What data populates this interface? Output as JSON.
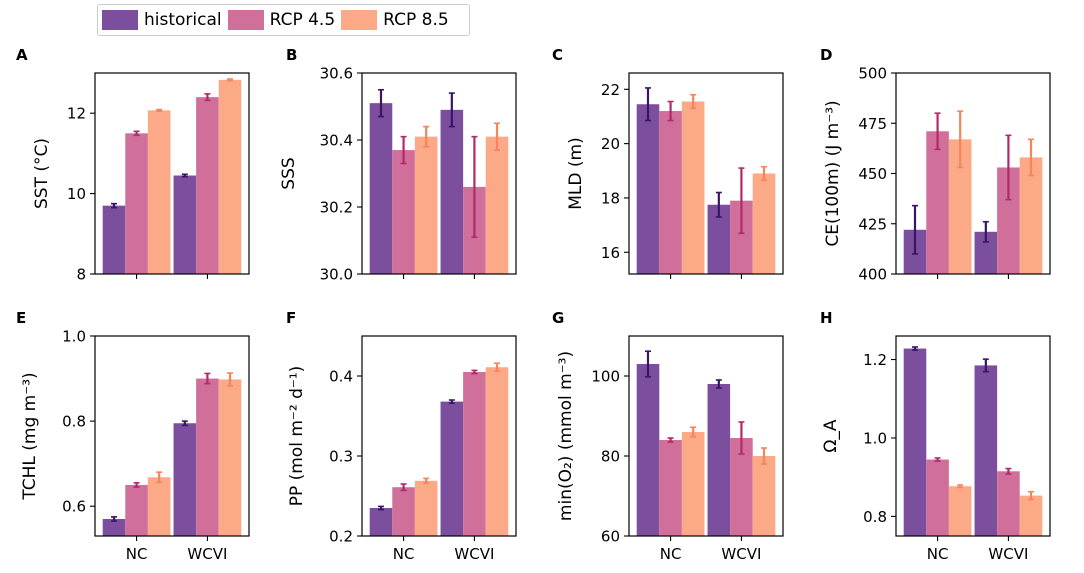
{
  "legend": [
    {
      "name": "historical",
      "color": "#7b4f9e"
    },
    {
      "name": "RCP 4.5",
      "color": "#d0709a"
    },
    {
      "name": "RCP 8.5",
      "color": "#fca987"
    }
  ],
  "chart_data": [
    {
      "type": "bar",
      "label": "A",
      "ylabel": "SST (°C)",
      "categories": [
        "NC",
        "WCVI"
      ],
      "ylim": [
        8,
        13
      ],
      "yticks": [
        "8",
        "10",
        "12"
      ],
      "ytick_values": [
        8,
        10,
        12
      ],
      "series": [
        {
          "name": "historical",
          "values": [
            9.7,
            10.45
          ],
          "err": [
            0.05,
            0.03
          ]
        },
        {
          "name": "RCP 4.5",
          "values": [
            11.5,
            12.4
          ],
          "err": [
            0.05,
            0.08
          ]
        },
        {
          "name": "RCP 8.5",
          "values": [
            12.07,
            12.83
          ],
          "err": [
            0.02,
            0.02
          ]
        }
      ]
    },
    {
      "type": "bar",
      "label": "B",
      "ylabel": "SSS",
      "categories": [
        "NC",
        "WCVI"
      ],
      "ylim": [
        30.0,
        30.6
      ],
      "yticks": [
        "30.0",
        "30.2",
        "30.4",
        "30.6"
      ],
      "ytick_values": [
        30.0,
        30.2,
        30.4,
        30.6
      ],
      "series": [
        {
          "name": "historical",
          "values": [
            30.51,
            30.49
          ],
          "err": [
            0.04,
            0.05
          ]
        },
        {
          "name": "RCP 4.5",
          "values": [
            30.37,
            30.26
          ],
          "err": [
            0.04,
            0.15
          ]
        },
        {
          "name": "RCP 8.5",
          "values": [
            30.41,
            30.41
          ],
          "err": [
            0.03,
            0.04
          ]
        }
      ]
    },
    {
      "type": "bar",
      "label": "C",
      "ylabel": "MLD (m)",
      "categories": [
        "NC",
        "WCVI"
      ],
      "ylim": [
        15.2,
        22.6
      ],
      "yticks": [
        "16",
        "18",
        "20",
        "22"
      ],
      "ytick_values": [
        16,
        18,
        20,
        22
      ],
      "series": [
        {
          "name": "historical",
          "values": [
            21.45,
            17.75
          ],
          "err": [
            0.6,
            0.45
          ]
        },
        {
          "name": "RCP 4.5",
          "values": [
            21.2,
            17.9
          ],
          "err": [
            0.35,
            1.2
          ]
        },
        {
          "name": "RCP 8.5",
          "values": [
            21.55,
            18.9
          ],
          "err": [
            0.25,
            0.25
          ]
        }
      ]
    },
    {
      "type": "bar",
      "label": "D",
      "ylabel": "CE(100m) (J m⁻³)",
      "categories": [
        "NC",
        "WCVI"
      ],
      "ylim": [
        400,
        500
      ],
      "yticks": [
        "400",
        "425",
        "450",
        "475",
        "500"
      ],
      "ytick_values": [
        400,
        425,
        450,
        475,
        500
      ],
      "series": [
        {
          "name": "historical",
          "values": [
            422,
            421
          ],
          "err": [
            12,
            5
          ]
        },
        {
          "name": "RCP 4.5",
          "values": [
            471,
            453
          ],
          "err": [
            9,
            16
          ]
        },
        {
          "name": "RCP 8.5",
          "values": [
            467,
            458
          ],
          "err": [
            14,
            9
          ]
        }
      ]
    },
    {
      "type": "bar",
      "label": "E",
      "ylabel": "TCHL (mg m⁻³)",
      "categories": [
        "NC",
        "WCVI"
      ],
      "ylim": [
        0.53,
        1.0
      ],
      "yticks": [
        "0.6",
        "0.8",
        "1.0"
      ],
      "ytick_values": [
        0.6,
        0.8,
        1.0
      ],
      "series": [
        {
          "name": "historical",
          "values": [
            0.57,
            0.795
          ],
          "err": [
            0.005,
            0.005
          ]
        },
        {
          "name": "RCP 4.5",
          "values": [
            0.65,
            0.9
          ],
          "err": [
            0.005,
            0.012
          ]
        },
        {
          "name": "RCP 8.5",
          "values": [
            0.668,
            0.898
          ],
          "err": [
            0.012,
            0.015
          ]
        }
      ]
    },
    {
      "type": "bar",
      "label": "F",
      "ylabel": "PP (mol m⁻² d⁻¹)",
      "categories": [
        "NC",
        "WCVI"
      ],
      "ylim": [
        0.2,
        0.45
      ],
      "yticks": [
        "0.2",
        "0.3",
        "0.4"
      ],
      "ytick_values": [
        0.2,
        0.3,
        0.4
      ],
      "series": [
        {
          "name": "historical",
          "values": [
            0.235,
            0.368
          ],
          "err": [
            0.002,
            0.002
          ]
        },
        {
          "name": "RCP 4.5",
          "values": [
            0.261,
            0.405
          ],
          "err": [
            0.004,
            0.002
          ]
        },
        {
          "name": "RCP 8.5",
          "values": [
            0.269,
            0.411
          ],
          "err": [
            0.003,
            0.005
          ]
        }
      ]
    },
    {
      "type": "bar",
      "label": "G",
      "ylabel": "min(O₂) (mmol m⁻³)",
      "categories": [
        "NC",
        "WCVI"
      ],
      "ylim": [
        60,
        110
      ],
      "yticks": [
        "60",
        "80",
        "100"
      ],
      "ytick_values": [
        60,
        80,
        100
      ],
      "series": [
        {
          "name": "historical",
          "values": [
            103,
            98
          ],
          "err": [
            3.2,
            1
          ]
        },
        {
          "name": "RCP 4.5",
          "values": [
            84,
            84.5
          ],
          "err": [
            0.5,
            4
          ]
        },
        {
          "name": "RCP 8.5",
          "values": [
            86,
            80
          ],
          "err": [
            1.2,
            2
          ]
        }
      ]
    },
    {
      "type": "bar",
      "label": "H",
      "ylabel": "Ω_A",
      "categories": [
        "NC",
        "WCVI"
      ],
      "ylim": [
        0.75,
        1.26
      ],
      "yticks": [
        "0.8",
        "1.0",
        "1.2"
      ],
      "ytick_values": [
        0.8,
        1.0,
        1.2
      ],
      "series": [
        {
          "name": "historical",
          "values": [
            1.228,
            1.185
          ],
          "err": [
            0.004,
            0.016
          ]
        },
        {
          "name": "RCP 4.5",
          "values": [
            0.945,
            0.915
          ],
          "err": [
            0.004,
            0.007
          ]
        },
        {
          "name": "RCP 8.5",
          "values": [
            0.877,
            0.853
          ],
          "err": [
            0.003,
            0.01
          ]
        }
      ]
    }
  ]
}
